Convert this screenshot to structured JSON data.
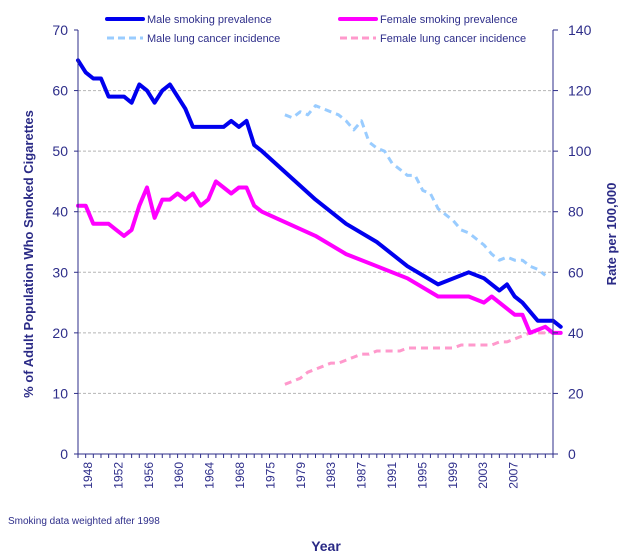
{
  "chart_data": {
    "type": "line",
    "title": "",
    "xlabel": "Year",
    "ylabel_left": "% of Adult Population Who Smoked Cigarettes",
    "ylabel_right": "Rate per 100,000",
    "note": "Smoking data weighted after 1998",
    "xlim": [
      1948,
      2010
    ],
    "ylim_left": [
      0,
      70
    ],
    "ylim_right": [
      0,
      140
    ],
    "yticks_left": [
      0,
      10,
      20,
      30,
      40,
      50,
      60,
      70
    ],
    "yticks_right": [
      0,
      20,
      40,
      60,
      80,
      100,
      120,
      140
    ],
    "xtick_labels": [
      "1948",
      "1952",
      "1956",
      "1960",
      "1964",
      "1968",
      "1975",
      "1979",
      "1983",
      "1987",
      "1991",
      "1995",
      "1999",
      "2003",
      "2007"
    ],
    "grid": "horizontal dashed",
    "legend_position": "top",
    "series": [
      {
        "name": "Male smoking prevalence",
        "axis": "left",
        "color": "#0000ee",
        "style": "solid",
        "points": [
          [
            1948,
            65
          ],
          [
            1949,
            63
          ],
          [
            1950,
            62
          ],
          [
            1951,
            62
          ],
          [
            1952,
            59
          ],
          [
            1953,
            59
          ],
          [
            1954,
            59
          ],
          [
            1955,
            58
          ],
          [
            1956,
            61
          ],
          [
            1957,
            60
          ],
          [
            1958,
            58
          ],
          [
            1959,
            60
          ],
          [
            1960,
            61
          ],
          [
            1961,
            59
          ],
          [
            1962,
            57
          ],
          [
            1963,
            54
          ],
          [
            1964,
            54
          ],
          [
            1965,
            54
          ],
          [
            1966,
            54
          ],
          [
            1967,
            54
          ],
          [
            1968,
            55
          ],
          [
            1969,
            54
          ],
          [
            1970,
            55
          ],
          [
            1971,
            51
          ],
          [
            1972,
            50
          ],
          [
            1979,
            42
          ],
          [
            1983,
            38
          ],
          [
            1987,
            35
          ],
          [
            1991,
            31
          ],
          [
            1995,
            28
          ],
          [
            1999,
            30
          ],
          [
            2001,
            29
          ],
          [
            2003,
            27
          ],
          [
            2004,
            28
          ],
          [
            2005,
            26
          ],
          [
            2006,
            25
          ],
          [
            2008,
            22
          ],
          [
            2010,
            22
          ],
          [
            2011,
            21
          ]
        ]
      },
      {
        "name": "Female smoking prevalence",
        "axis": "left",
        "color": "#ff00ff",
        "style": "solid",
        "points": [
          [
            1948,
            41
          ],
          [
            1949,
            41
          ],
          [
            1950,
            38
          ],
          [
            1951,
            38
          ],
          [
            1952,
            38
          ],
          [
            1953,
            37
          ],
          [
            1954,
            36
          ],
          [
            1955,
            37
          ],
          [
            1956,
            41
          ],
          [
            1957,
            44
          ],
          [
            1958,
            39
          ],
          [
            1959,
            42
          ],
          [
            1960,
            42
          ],
          [
            1961,
            43
          ],
          [
            1962,
            42
          ],
          [
            1963,
            43
          ],
          [
            1964,
            41
          ],
          [
            1965,
            42
          ],
          [
            1966,
            45
          ],
          [
            1967,
            44
          ],
          [
            1968,
            43
          ],
          [
            1969,
            44
          ],
          [
            1970,
            44
          ],
          [
            1971,
            41
          ],
          [
            1972,
            40
          ],
          [
            1979,
            36
          ],
          [
            1983,
            33
          ],
          [
            1987,
            31
          ],
          [
            1991,
            29
          ],
          [
            1995,
            26
          ],
          [
            1999,
            26
          ],
          [
            2001,
            25
          ],
          [
            2002,
            26
          ],
          [
            2005,
            23
          ],
          [
            2006,
            23
          ],
          [
            2007,
            20
          ],
          [
            2009,
            21
          ],
          [
            2010,
            20
          ],
          [
            2011,
            20
          ]
        ]
      },
      {
        "name": "Male lung cancer incidence",
        "axis": "right",
        "color": "#99ccff",
        "style": "dashed",
        "points": [
          [
            1975,
            112
          ],
          [
            1976,
            111
          ],
          [
            1977,
            113
          ],
          [
            1978,
            112
          ],
          [
            1979,
            115
          ],
          [
            1980,
            114
          ],
          [
            1981,
            113
          ],
          [
            1982,
            112
          ],
          [
            1983,
            110
          ],
          [
            1984,
            107
          ],
          [
            1985,
            110
          ],
          [
            1986,
            103
          ],
          [
            1987,
            101
          ],
          [
            1988,
            100
          ],
          [
            1989,
            96
          ],
          [
            1990,
            94
          ],
          [
            1991,
            92
          ],
          [
            1992,
            92
          ],
          [
            1993,
            87
          ],
          [
            1994,
            86
          ],
          [
            1995,
            81
          ],
          [
            1996,
            79
          ],
          [
            1997,
            77
          ],
          [
            1998,
            74
          ],
          [
            1999,
            73
          ],
          [
            2000,
            71
          ],
          [
            2001,
            69
          ],
          [
            2002,
            66
          ],
          [
            2003,
            64
          ],
          [
            2004,
            65
          ],
          [
            2005,
            64
          ],
          [
            2006,
            64
          ],
          [
            2007,
            62
          ],
          [
            2008,
            61
          ],
          [
            2009,
            59
          ]
        ]
      },
      {
        "name": "Female lung cancer incidence",
        "axis": "right",
        "color": "#ff99cc",
        "style": "dashed",
        "points": [
          [
            1975,
            23
          ],
          [
            1976,
            24
          ],
          [
            1977,
            25
          ],
          [
            1978,
            27
          ],
          [
            1979,
            28
          ],
          [
            1980,
            29
          ],
          [
            1981,
            30
          ],
          [
            1982,
            30
          ],
          [
            1983,
            31
          ],
          [
            1984,
            32
          ],
          [
            1985,
            33
          ],
          [
            1986,
            33
          ],
          [
            1987,
            34
          ],
          [
            1988,
            34
          ],
          [
            1989,
            34
          ],
          [
            1990,
            34
          ],
          [
            1991,
            35
          ],
          [
            1992,
            35
          ],
          [
            1993,
            35
          ],
          [
            1994,
            35
          ],
          [
            1995,
            35
          ],
          [
            1996,
            35
          ],
          [
            1997,
            35
          ],
          [
            1998,
            36
          ],
          [
            1999,
            36
          ],
          [
            2000,
            36
          ],
          [
            2001,
            36
          ],
          [
            2002,
            36
          ],
          [
            2003,
            37
          ],
          [
            2004,
            37
          ],
          [
            2005,
            38
          ],
          [
            2006,
            39
          ],
          [
            2007,
            40
          ],
          [
            2008,
            40
          ],
          [
            2009,
            40
          ]
        ]
      }
    ]
  }
}
